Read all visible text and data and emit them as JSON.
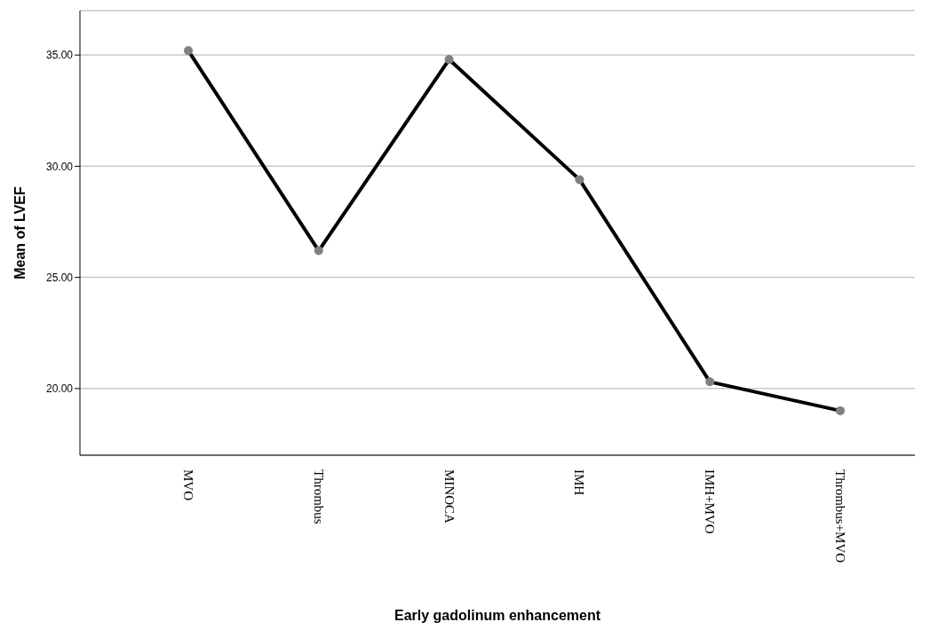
{
  "chart_data": {
    "type": "line",
    "xlabel": "Early gadolinum enhancement",
    "ylabel": "Mean of LVEF",
    "categories": [
      "MVO",
      "Thrombus",
      "MINOCA",
      "IMH",
      "IMH+MVO",
      "Thrombus+MVO"
    ],
    "series": [
      {
        "color": "#000000",
        "values": [
          35.2,
          26.2,
          34.8,
          29.4,
          20.3,
          19.0
        ]
      }
    ],
    "ylim": [
      17,
      37
    ],
    "yticks": [
      {
        "value": 20,
        "label": "20.00"
      },
      {
        "value": 25,
        "label": "25.00"
      },
      {
        "value": 30,
        "label": "30.00"
      },
      {
        "value": 35,
        "label": "35.00"
      }
    ],
    "grid": "y",
    "marker": "circle",
    "line_style": "solid",
    "legend": false
  }
}
